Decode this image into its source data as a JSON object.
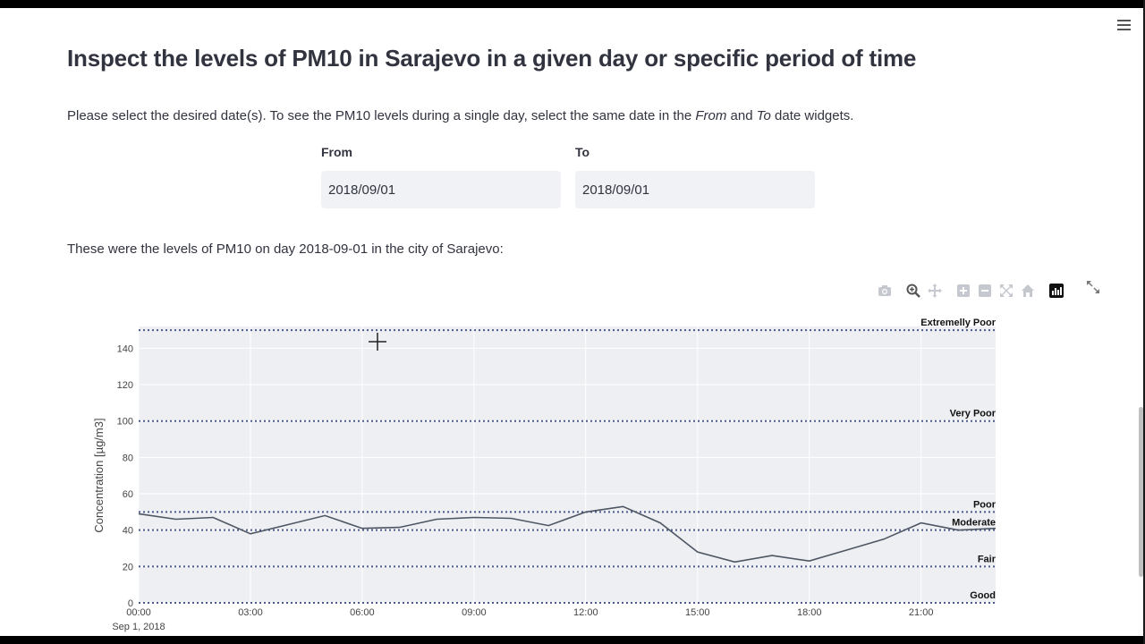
{
  "header": {
    "title": "Inspect the levels of PM10 in Sarajevo in a given day or specific period of time",
    "menu_icon": "hamburger-menu-icon"
  },
  "instructions": {
    "part1": "Please select the desired date(s). To see the PM10 levels during a single day, select the same date in the ",
    "from_em": "From",
    "part2": " and ",
    "to_em": "To",
    "part3": " date widgets."
  },
  "date_range": {
    "from_label": "From",
    "from_value": "2018/09/01",
    "to_label": "To",
    "to_value": "2018/09/01"
  },
  "result_text": "These were the levels of PM10 on day 2018-09-01 in the city of Sarajevo:",
  "modebar": {
    "icons": [
      "camera-icon",
      "zoom-icon",
      "pan-icon",
      "zoom-in-icon",
      "zoom-out-icon",
      "autoscale-icon",
      "reset-axes-icon",
      "plotly-logo-icon"
    ],
    "expand_icon": "fullscreen-icon"
  },
  "chart_data": {
    "type": "line",
    "xlabel": "",
    "ylabel": "Concentration [µg/m3]",
    "x_date_label": "Sep 1, 2018",
    "x_tick_labels": [
      "00:00",
      "03:00",
      "06:00",
      "09:00",
      "12:00",
      "15:00",
      "18:00",
      "21:00"
    ],
    "x_tick_hours": [
      0,
      3,
      6,
      9,
      12,
      15,
      18,
      21
    ],
    "xlim_hours": [
      0,
      23
    ],
    "ylim": [
      0,
      152
    ],
    "y_ticks": [
      0,
      20,
      40,
      60,
      80,
      100,
      120,
      140
    ],
    "grid": true,
    "series": [
      {
        "color": "#4d5663",
        "x": [
          "00:00",
          "01:00",
          "02:00",
          "03:00",
          "04:00",
          "05:00",
          "06:00",
          "07:00",
          "08:00",
          "09:00",
          "10:00",
          "11:00",
          "12:00",
          "13:00",
          "14:00",
          "15:00",
          "16:00",
          "17:00",
          "18:00",
          "19:00",
          "20:00",
          "21:00",
          "22:00",
          "23:00"
        ],
        "values": [
          49,
          46,
          47,
          38,
          43,
          48,
          41,
          41.5,
          46,
          47,
          46.5,
          42.5,
          50,
          53,
          44,
          28,
          22.5,
          26,
          23,
          29,
          35,
          44,
          40,
          41
        ]
      }
    ],
    "thresholds": [
      {
        "label": "Good",
        "value": 0
      },
      {
        "label": "Fair",
        "value": 20
      },
      {
        "label": "Moderate",
        "value": 40
      },
      {
        "label": "Poor",
        "value": 50
      },
      {
        "label": "Very Poor",
        "value": 100
      },
      {
        "label": "Extremelly Poor",
        "value": 150
      }
    ],
    "colors": {
      "plot_bg": "#eeeff3",
      "grid": "#ffffff",
      "threshold": "#4b5a8c",
      "line": "#4d5663"
    }
  }
}
